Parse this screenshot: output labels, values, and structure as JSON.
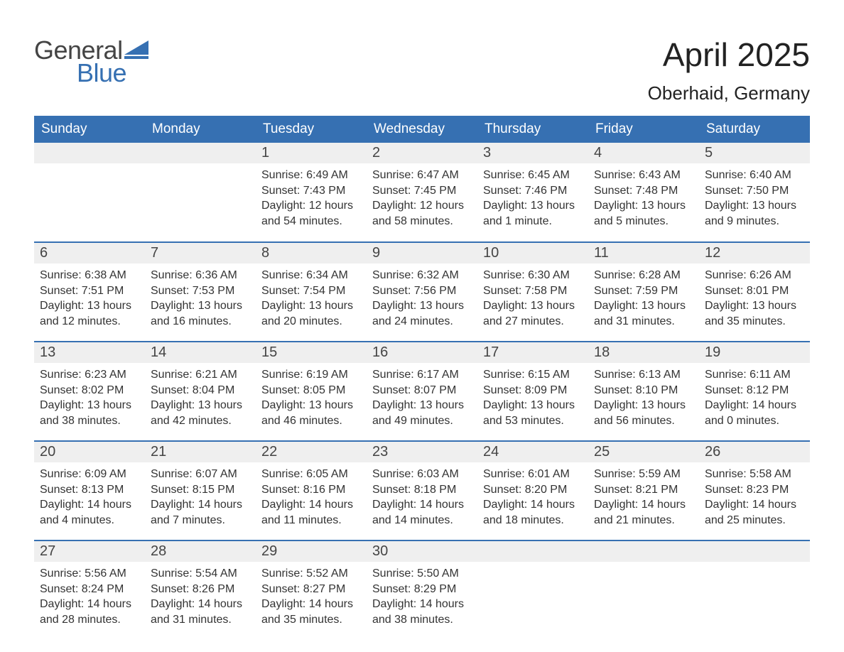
{
  "logo": {
    "word1": "General",
    "word2": "Blue",
    "word1_color": "#444444",
    "word2_color": "#3670b2",
    "mark_color": "#3670b2",
    "font_size": 36
  },
  "header": {
    "month_title": "April 2025",
    "location": "Oberhaid, Germany",
    "month_title_fontsize": 46,
    "location_fontsize": 26,
    "text_color": "#222222"
  },
  "calendar": {
    "type": "table",
    "header_bg": "#3670b2",
    "header_text_color": "#ffffff",
    "row_separator_color": "#3670b2",
    "daynum_bg": "#efefef",
    "cell_text_color": "#333333",
    "background_color": "#ffffff",
    "header_fontsize": 19,
    "daynum_fontsize": 20,
    "content_fontsize": 16,
    "columns": [
      "Sunday",
      "Monday",
      "Tuesday",
      "Wednesday",
      "Thursday",
      "Friday",
      "Saturday"
    ],
    "weeks": [
      [
        {
          "day": "",
          "sunrise": "",
          "sunset": "",
          "daylight1": "",
          "daylight2": ""
        },
        {
          "day": "",
          "sunrise": "",
          "sunset": "",
          "daylight1": "",
          "daylight2": ""
        },
        {
          "day": "1",
          "sunrise": "Sunrise: 6:49 AM",
          "sunset": "Sunset: 7:43 PM",
          "daylight1": "Daylight: 12 hours",
          "daylight2": "and 54 minutes."
        },
        {
          "day": "2",
          "sunrise": "Sunrise: 6:47 AM",
          "sunset": "Sunset: 7:45 PM",
          "daylight1": "Daylight: 12 hours",
          "daylight2": "and 58 minutes."
        },
        {
          "day": "3",
          "sunrise": "Sunrise: 6:45 AM",
          "sunset": "Sunset: 7:46 PM",
          "daylight1": "Daylight: 13 hours",
          "daylight2": "and 1 minute."
        },
        {
          "day": "4",
          "sunrise": "Sunrise: 6:43 AM",
          "sunset": "Sunset: 7:48 PM",
          "daylight1": "Daylight: 13 hours",
          "daylight2": "and 5 minutes."
        },
        {
          "day": "5",
          "sunrise": "Sunrise: 6:40 AM",
          "sunset": "Sunset: 7:50 PM",
          "daylight1": "Daylight: 13 hours",
          "daylight2": "and 9 minutes."
        }
      ],
      [
        {
          "day": "6",
          "sunrise": "Sunrise: 6:38 AM",
          "sunset": "Sunset: 7:51 PM",
          "daylight1": "Daylight: 13 hours",
          "daylight2": "and 12 minutes."
        },
        {
          "day": "7",
          "sunrise": "Sunrise: 6:36 AM",
          "sunset": "Sunset: 7:53 PM",
          "daylight1": "Daylight: 13 hours",
          "daylight2": "and 16 minutes."
        },
        {
          "day": "8",
          "sunrise": "Sunrise: 6:34 AM",
          "sunset": "Sunset: 7:54 PM",
          "daylight1": "Daylight: 13 hours",
          "daylight2": "and 20 minutes."
        },
        {
          "day": "9",
          "sunrise": "Sunrise: 6:32 AM",
          "sunset": "Sunset: 7:56 PM",
          "daylight1": "Daylight: 13 hours",
          "daylight2": "and 24 minutes."
        },
        {
          "day": "10",
          "sunrise": "Sunrise: 6:30 AM",
          "sunset": "Sunset: 7:58 PM",
          "daylight1": "Daylight: 13 hours",
          "daylight2": "and 27 minutes."
        },
        {
          "day": "11",
          "sunrise": "Sunrise: 6:28 AM",
          "sunset": "Sunset: 7:59 PM",
          "daylight1": "Daylight: 13 hours",
          "daylight2": "and 31 minutes."
        },
        {
          "day": "12",
          "sunrise": "Sunrise: 6:26 AM",
          "sunset": "Sunset: 8:01 PM",
          "daylight1": "Daylight: 13 hours",
          "daylight2": "and 35 minutes."
        }
      ],
      [
        {
          "day": "13",
          "sunrise": "Sunrise: 6:23 AM",
          "sunset": "Sunset: 8:02 PM",
          "daylight1": "Daylight: 13 hours",
          "daylight2": "and 38 minutes."
        },
        {
          "day": "14",
          "sunrise": "Sunrise: 6:21 AM",
          "sunset": "Sunset: 8:04 PM",
          "daylight1": "Daylight: 13 hours",
          "daylight2": "and 42 minutes."
        },
        {
          "day": "15",
          "sunrise": "Sunrise: 6:19 AM",
          "sunset": "Sunset: 8:05 PM",
          "daylight1": "Daylight: 13 hours",
          "daylight2": "and 46 minutes."
        },
        {
          "day": "16",
          "sunrise": "Sunrise: 6:17 AM",
          "sunset": "Sunset: 8:07 PM",
          "daylight1": "Daylight: 13 hours",
          "daylight2": "and 49 minutes."
        },
        {
          "day": "17",
          "sunrise": "Sunrise: 6:15 AM",
          "sunset": "Sunset: 8:09 PM",
          "daylight1": "Daylight: 13 hours",
          "daylight2": "and 53 minutes."
        },
        {
          "day": "18",
          "sunrise": "Sunrise: 6:13 AM",
          "sunset": "Sunset: 8:10 PM",
          "daylight1": "Daylight: 13 hours",
          "daylight2": "and 56 minutes."
        },
        {
          "day": "19",
          "sunrise": "Sunrise: 6:11 AM",
          "sunset": "Sunset: 8:12 PM",
          "daylight1": "Daylight: 14 hours",
          "daylight2": "and 0 minutes."
        }
      ],
      [
        {
          "day": "20",
          "sunrise": "Sunrise: 6:09 AM",
          "sunset": "Sunset: 8:13 PM",
          "daylight1": "Daylight: 14 hours",
          "daylight2": "and 4 minutes."
        },
        {
          "day": "21",
          "sunrise": "Sunrise: 6:07 AM",
          "sunset": "Sunset: 8:15 PM",
          "daylight1": "Daylight: 14 hours",
          "daylight2": "and 7 minutes."
        },
        {
          "day": "22",
          "sunrise": "Sunrise: 6:05 AM",
          "sunset": "Sunset: 8:16 PM",
          "daylight1": "Daylight: 14 hours",
          "daylight2": "and 11 minutes."
        },
        {
          "day": "23",
          "sunrise": "Sunrise: 6:03 AM",
          "sunset": "Sunset: 8:18 PM",
          "daylight1": "Daylight: 14 hours",
          "daylight2": "and 14 minutes."
        },
        {
          "day": "24",
          "sunrise": "Sunrise: 6:01 AM",
          "sunset": "Sunset: 8:20 PM",
          "daylight1": "Daylight: 14 hours",
          "daylight2": "and 18 minutes."
        },
        {
          "day": "25",
          "sunrise": "Sunrise: 5:59 AM",
          "sunset": "Sunset: 8:21 PM",
          "daylight1": "Daylight: 14 hours",
          "daylight2": "and 21 minutes."
        },
        {
          "day": "26",
          "sunrise": "Sunrise: 5:58 AM",
          "sunset": "Sunset: 8:23 PM",
          "daylight1": "Daylight: 14 hours",
          "daylight2": "and 25 minutes."
        }
      ],
      [
        {
          "day": "27",
          "sunrise": "Sunrise: 5:56 AM",
          "sunset": "Sunset: 8:24 PM",
          "daylight1": "Daylight: 14 hours",
          "daylight2": "and 28 minutes."
        },
        {
          "day": "28",
          "sunrise": "Sunrise: 5:54 AM",
          "sunset": "Sunset: 8:26 PM",
          "daylight1": "Daylight: 14 hours",
          "daylight2": "and 31 minutes."
        },
        {
          "day": "29",
          "sunrise": "Sunrise: 5:52 AM",
          "sunset": "Sunset: 8:27 PM",
          "daylight1": "Daylight: 14 hours",
          "daylight2": "and 35 minutes."
        },
        {
          "day": "30",
          "sunrise": "Sunrise: 5:50 AM",
          "sunset": "Sunset: 8:29 PM",
          "daylight1": "Daylight: 14 hours",
          "daylight2": "and 38 minutes."
        },
        {
          "day": "",
          "sunrise": "",
          "sunset": "",
          "daylight1": "",
          "daylight2": ""
        },
        {
          "day": "",
          "sunrise": "",
          "sunset": "",
          "daylight1": "",
          "daylight2": ""
        },
        {
          "day": "",
          "sunrise": "",
          "sunset": "",
          "daylight1": "",
          "daylight2": ""
        }
      ]
    ]
  }
}
